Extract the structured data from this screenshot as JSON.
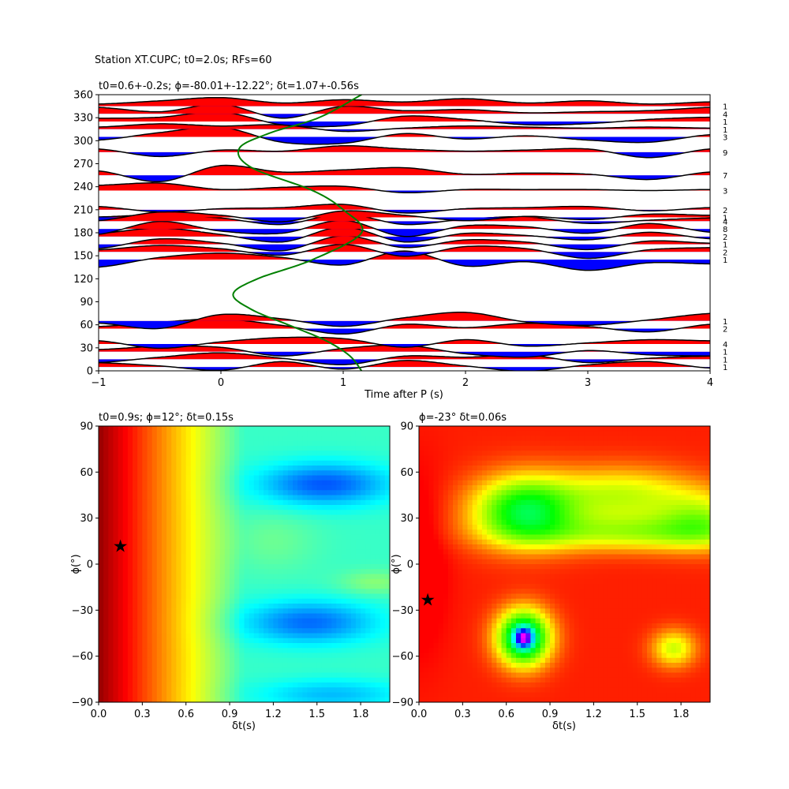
{
  "suptitle": "Station XT.CUPC; t0=2.0s; RFs=60",
  "chart_data": [
    {
      "type": "line",
      "panel": "receiver-function-gather",
      "title": "t0=0.6+-0.2s; ϕ=-80.01+-12.22°; δt=1.07+-0.56s",
      "xlabel": "Time after P (s)",
      "ylabel": "",
      "xlim": [
        -1,
        4
      ],
      "ylim": [
        0,
        360
      ],
      "xticks": [
        -1,
        0,
        1,
        2,
        3,
        4
      ],
      "yticks": [
        0,
        30,
        60,
        90,
        120,
        150,
        180,
        210,
        240,
        270,
        300,
        330,
        360
      ],
      "grid": false,
      "fill_positive": "#ff0000",
      "fill_negative": "#0000ff",
      "trace_color": "#000000",
      "trace_amplitude_deg": 14,
      "traces": [
        {
          "baz": 5,
          "count": "1",
          "w": [
            0.4,
            0.1,
            -0.3,
            0.5,
            -0.2,
            0.6,
            0.1,
            -0.4,
            0.2,
            0.5,
            -0.1
          ]
        },
        {
          "baz": 15,
          "count": "1",
          "w": [
            -0.3,
            0.2,
            0.6,
            0.1,
            -0.5,
            0.3,
            0.2,
            0.4,
            -0.3,
            0.1,
            0.3
          ]
        },
        {
          "baz": 25,
          "count": "1",
          "w": [
            0.2,
            0.5,
            0.4,
            -0.4,
            0.3,
            0.6,
            -0.2,
            -0.5,
            0.1,
            -0.3,
            -0.4
          ]
        },
        {
          "baz": 35,
          "count": "4",
          "w": [
            0.3,
            -0.4,
            0.2,
            0.6,
            0.5,
            -0.3,
            0.4,
            -0.2,
            0.1,
            0.4,
            0.3
          ]
        },
        {
          "baz": 55,
          "count": "2",
          "w": [
            0.2,
            0.6,
            0.9,
            0.3,
            -0.5,
            0.4,
            0.1,
            0.5,
            0.2,
            -0.3,
            0.4
          ]
        },
        {
          "baz": 65,
          "count": "1",
          "w": [
            -0.2,
            -0.7,
            0.6,
            0.2,
            -0.5,
            0.3,
            0.8,
            -0.1,
            -0.4,
            0.1,
            0.7
          ]
        },
        {
          "baz": 145,
          "count": "1",
          "w": [
            -0.7,
            0.2,
            0.6,
            0.2,
            -0.5,
            0.8,
            -0.6,
            -0.2,
            -1.0,
            -0.3,
            -0.4
          ]
        },
        {
          "baz": 155,
          "count": "2",
          "w": [
            0.2,
            0.6,
            0.3,
            -0.3,
            0.7,
            -0.4,
            0.5,
            0.3,
            -0.6,
            0.2,
            0.4
          ]
        },
        {
          "baz": 165,
          "count": "1",
          "w": [
            -0.4,
            0.5,
            0.1,
            -0.6,
            0.8,
            -0.3,
            0.4,
            0.2,
            -0.5,
            0.3,
            0.1
          ]
        },
        {
          "baz": 175,
          "count": "2",
          "w": [
            0.3,
            0.8,
            0.2,
            -0.5,
            0.9,
            -0.5,
            0.3,
            0.1,
            -0.3,
            0.4,
            -0.2
          ]
        },
        {
          "baz": 185,
          "count": "8",
          "w": [
            -0.5,
            0.7,
            -0.2,
            -0.4,
            0.8,
            -0.7,
            0.3,
            0.2,
            -0.4,
            0.5,
            -0.3
          ]
        },
        {
          "baz": 195,
          "count": "4",
          "w": [
            0.4,
            0.6,
            0.3,
            -0.3,
            0.7,
            -0.3,
            0.2,
            0.4,
            -0.2,
            0.1,
            0.3
          ]
        },
        {
          "baz": 200,
          "count": "1",
          "w": [
            -0.3,
            0.5,
            0.2,
            -0.4,
            0.6,
            0.2,
            -0.3,
            0.1,
            -0.2,
            0.3,
            0.2
          ]
        },
        {
          "baz": 210,
          "count": "2",
          "w": [
            0.3,
            -0.2,
            0.1,
            0.2,
            0.5,
            -0.3,
            0.1,
            0.2,
            0.3,
            -0.1,
            0.2
          ]
        },
        {
          "baz": 235,
          "count": "3",
          "w": [
            0.5,
            0.7,
            0.1,
            0.3,
            0.4,
            -0.2,
            0.1,
            0.1,
            0.1,
            0.0,
            0.1
          ]
        },
        {
          "baz": 255,
          "count": "7",
          "w": [
            0.4,
            -0.6,
            0.9,
            0.3,
            0.5,
            0.7,
            0.1,
            0.2,
            0.1,
            -0.4,
            0.3
          ]
        },
        {
          "baz": 285,
          "count": "9",
          "w": [
            0.3,
            -0.4,
            0.2,
            0.1,
            0.6,
            0.3,
            0.1,
            0.2,
            0.3,
            -0.5,
            0.3
          ]
        },
        {
          "baz": 305,
          "count": "3",
          "w": [
            -0.3,
            0.4,
            0.9,
            -0.5,
            -0.6,
            0.3,
            -0.2,
            0.1,
            -0.3,
            -0.5,
            0.2
          ]
        },
        {
          "baz": 315,
          "count": "1",
          "w": [
            0.2,
            0.5,
            0.3,
            0.4,
            -0.2,
            0.1,
            0.3,
            0.2,
            0.1,
            0.2,
            0.1
          ]
        },
        {
          "baz": 325,
          "count": "1",
          "w": [
            0.3,
            0.4,
            0.9,
            -0.3,
            -0.4,
            0.5,
            0.2,
            -0.3,
            -0.2,
            0.2,
            0.4
          ]
        },
        {
          "baz": 335,
          "count": "4",
          "w": [
            0.6,
            0.2,
            0.9,
            -0.4,
            0.7,
            0.3,
            0.4,
            0.1,
            0.2,
            0.3,
            0.6
          ]
        },
        {
          "baz": 345,
          "count": "1",
          "w": [
            0.2,
            0.5,
            0.8,
            0.3,
            0.6,
            0.4,
            0.7,
            0.3,
            0.5,
            0.2,
            0.4
          ]
        }
      ],
      "curve": {
        "color": "#008000",
        "points": [
          [
            1.15,
            0
          ],
          [
            1.05,
            20
          ],
          [
            0.85,
            40
          ],
          [
            0.55,
            60
          ],
          [
            0.25,
            80
          ],
          [
            0.1,
            100
          ],
          [
            0.3,
            120
          ],
          [
            0.75,
            145
          ],
          [
            1.15,
            180
          ],
          [
            1.0,
            210
          ],
          [
            0.75,
            235
          ],
          [
            0.25,
            265
          ],
          [
            0.15,
            290
          ],
          [
            0.4,
            310
          ],
          [
            0.8,
            330
          ],
          [
            1.15,
            360
          ]
        ]
      }
    },
    {
      "type": "heatmap",
      "panel": "minimum-energy-grid",
      "title": "t0=0.9s; ϕ=12°; δt=0.15s",
      "xlabel": "δt(s)",
      "ylabel": "ϕ(°)",
      "xlim": [
        0,
        2
      ],
      "ylim": [
        -90,
        90
      ],
      "xticks": [
        0.0,
        0.3,
        0.6,
        0.9,
        1.2,
        1.5,
        1.8
      ],
      "yticks": [
        -90,
        -60,
        -30,
        0,
        30,
        60,
        90
      ],
      "colormap": "jet",
      "marker": {
        "x": 0.15,
        "y": 12,
        "symbol": "star",
        "color": "#000000"
      }
    },
    {
      "type": "heatmap",
      "panel": "cross-correlation-grid",
      "title": "ϕ=-23° δt=0.06s",
      "xlabel": "δt(s)",
      "ylabel": "ϕ(°)",
      "xlim": [
        0,
        2
      ],
      "ylim": [
        -90,
        90
      ],
      "xticks": [
        0.0,
        0.3,
        0.6,
        0.9,
        1.2,
        1.5,
        1.8
      ],
      "yticks": [
        -90,
        -60,
        -30,
        0,
        30,
        60,
        90
      ],
      "colormap": "hsv",
      "marker": {
        "x": 0.06,
        "y": -23,
        "symbol": "star",
        "color": "#000000"
      }
    }
  ]
}
